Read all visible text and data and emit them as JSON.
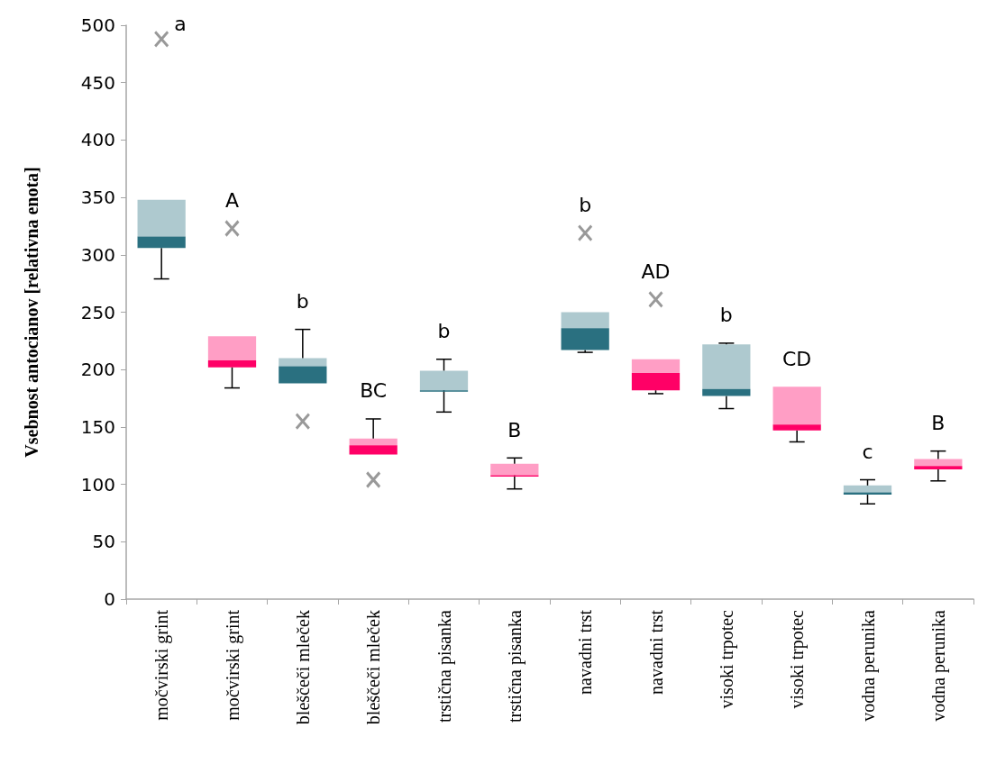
{
  "chart_data": {
    "type": "box",
    "ylabel": "Vsebnost antocianov [relativna enota]",
    "categories": [
      "močvirski grint",
      "močvirski grint",
      "bleščeči mleček",
      "bleščeči mleček",
      "trstična pisanka",
      "trstična pisanka",
      "navadni trst",
      "navadni trst",
      "visoki trpotec",
      "visoki trpotec",
      "vodna perunika",
      "vodna perunika"
    ],
    "ylim": [
      0,
      500
    ],
    "yticks": [
      0,
      50,
      100,
      150,
      200,
      250,
      300,
      350,
      400,
      450,
      500
    ],
    "grid": false,
    "series": [
      {
        "color": "#2a7080",
        "boxes": [
          {
            "low": 279,
            "q1": 306,
            "median": 316,
            "q3": 348,
            "high": 348,
            "outliers": [
              488
            ]
          },
          null,
          {
            "low": 188,
            "q1": 188,
            "median": 203,
            "q3": 210,
            "high": 235,
            "outliers": [
              155
            ]
          },
          null,
          {
            "low": 163,
            "q1": 182,
            "median": 182,
            "q3": 199,
            "high": 209
          },
          null,
          {
            "low": 215,
            "q1": 217,
            "median": 236,
            "q3": 250,
            "high": 250,
            "outliers": [
              319
            ]
          },
          null,
          {
            "low": 166,
            "q1": 177,
            "median": 183,
            "q3": 222,
            "high": 223
          },
          null,
          {
            "low": 83,
            "q1": 91,
            "median": 93,
            "q3": 99,
            "high": 104
          },
          null
        ]
      },
      {
        "color": "#ff0066",
        "boxes": [
          null,
          {
            "low": 184,
            "q1": 202,
            "median": 208,
            "q3": 229,
            "high": 229,
            "outliers": [
              323
            ]
          },
          null,
          {
            "low": 126,
            "q1": 126,
            "median": 134,
            "q3": 140,
            "high": 157,
            "outliers": [
              104
            ]
          },
          null,
          {
            "low": 96,
            "q1": 108,
            "median": 108,
            "q3": 118,
            "high": 123
          },
          null,
          {
            "low": 179,
            "q1": 182,
            "median": 197,
            "q3": 209,
            "high": 209,
            "outliers": [
              261
            ]
          },
          null,
          {
            "low": 137,
            "q1": 147,
            "median": 152,
            "q3": 185,
            "high": 185
          },
          null,
          {
            "low": 103,
            "q1": 113,
            "median": 116,
            "q3": 122,
            "high": 129
          }
        ]
      }
    ],
    "annotations": [
      "a",
      "A",
      "b",
      "BC",
      "b",
      "B",
      "b",
      "AD",
      "b",
      "CD",
      "c",
      "B"
    ]
  }
}
